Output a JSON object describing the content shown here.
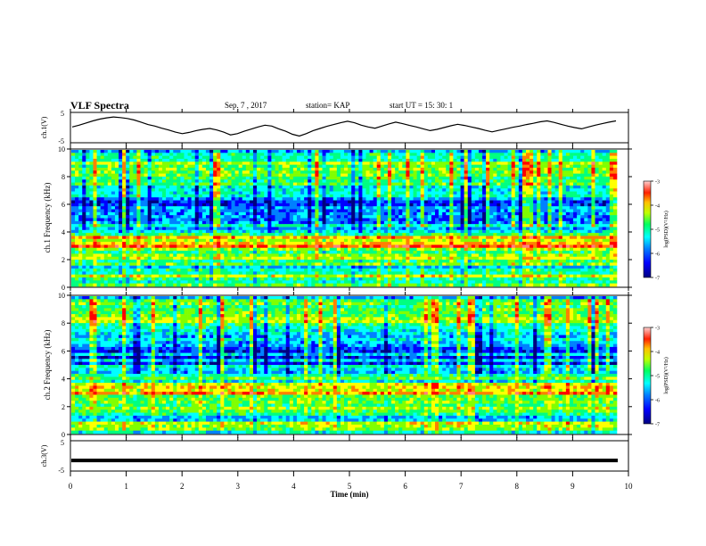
{
  "header": {
    "title": "VLF Spectra",
    "date": "Sep. 7 , 2017",
    "station": "station= KAP",
    "start": "start  UT =  15: 30: 1"
  },
  "chart_data": [
    {
      "type": "line",
      "panel": "ch1-waveform",
      "ylabel": "ch.1(V)",
      "ylim": [
        -5,
        5
      ],
      "yticks": [
        "5",
        "-5"
      ],
      "xlim": [
        0,
        10
      ],
      "series": [
        {
          "values": [
            0.2,
            0.8,
            1.5,
            2.2,
            2.8,
            3.2,
            3.5,
            3.3,
            3.0,
            2.5,
            1.8,
            1.0,
            0.5,
            -0.2,
            -0.8,
            -1.5,
            -2.0,
            -1.6,
            -1.0,
            -0.6,
            -0.3,
            -0.8,
            -1.5,
            -2.4,
            -2.0,
            -1.2,
            -0.5,
            0.2,
            0.8,
            0.5,
            -0.4,
            -1.2,
            -2.2,
            -2.8,
            -2.0,
            -1.0,
            -0.3,
            0.4,
            1.0,
            1.6,
            2.1,
            1.6,
            0.8,
            0.2,
            -0.2,
            0.5,
            1.2,
            1.8,
            1.3,
            0.7,
            0.2,
            -0.4,
            -1.0,
            -0.6,
            0.0,
            0.6,
            1.1,
            0.7,
            0.2,
            -0.3,
            -0.9,
            -1.4,
            -0.9,
            -0.4,
            0.1,
            0.5,
            1.0,
            1.4,
            1.9,
            2.2,
            1.7,
            1.1,
            0.5,
            0.0,
            -0.4,
            0.2,
            0.8,
            1.3,
            1.8,
            2.2
          ]
        }
      ]
    },
    {
      "type": "heatmap",
      "panel": "ch1-spectrogram",
      "ylabel": "ch.1 Frequency  (kHz)",
      "xlim": [
        0,
        10
      ],
      "ylim": [
        0,
        10
      ],
      "yticks": [
        "0",
        "2",
        "4",
        "6",
        "8",
        "10"
      ],
      "colorbar": {
        "label": "log(PSD)(V²/Hz)",
        "range": [
          -7,
          -3
        ],
        "ticks": [
          "-3",
          "-4",
          "-5",
          "-6",
          "-7"
        ]
      }
    },
    {
      "type": "heatmap",
      "panel": "ch2-spectrogram",
      "ylabel": "ch.2 Frequency  (kHz)",
      "xlim": [
        0,
        10
      ],
      "ylim": [
        0,
        10
      ],
      "yticks": [
        "0",
        "2",
        "4",
        "6",
        "8",
        "10"
      ],
      "colorbar": {
        "label": "log(PSD)(V²/Hz)",
        "range": [
          -7,
          -3
        ],
        "ticks": [
          "-3",
          "-4",
          "-5",
          "-6",
          "-7"
        ]
      }
    },
    {
      "type": "line",
      "panel": "ch3-waveform",
      "ylabel": "ch.3(V)",
      "ylim": [
        -5,
        5
      ],
      "yticks": [
        "5",
        "-5"
      ],
      "xlim": [
        0,
        10
      ],
      "series": [
        {
          "values": [
            -1.5,
            -1.5
          ]
        }
      ]
    }
  ],
  "xaxis": {
    "label": "Time  (min)",
    "ticks": [
      "0",
      "1",
      "2",
      "3",
      "4",
      "5",
      "6",
      "7",
      "8",
      "9",
      "10"
    ]
  },
  "colors": {
    "colormap": [
      "#000080",
      "#0000ff",
      "#0080ff",
      "#00ffff",
      "#00ff80",
      "#80ff00",
      "#ffff00",
      "#ff8000",
      "#ff0000",
      "#ff8080"
    ],
    "axis": "#000000"
  }
}
